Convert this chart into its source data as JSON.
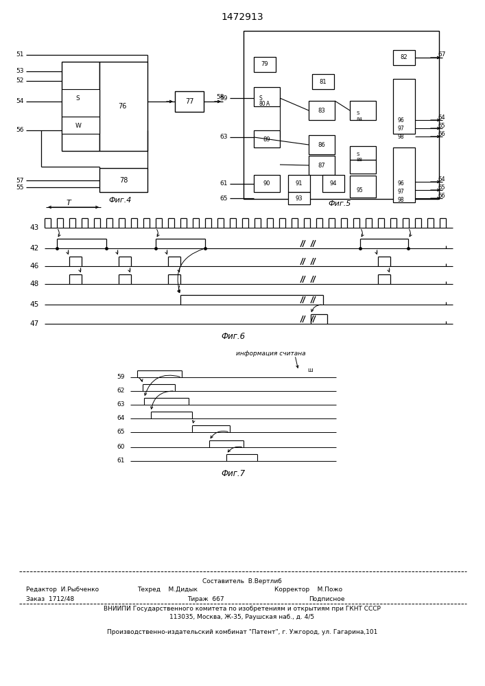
{
  "title": "1472913",
  "bg": "#f5f5f0",
  "lc": "#111111",
  "tc": "#111111",
  "fig4_label": "Фиг.4",
  "fig5_label": "Фиг.5",
  "fig6_label": "Фиг.6",
  "fig7_label": "Фиг.7",
  "info_text": "информация считана",
  "footer": [
    [
      "center",
      353,
      152,
      "Составитель  В.Вертлиб"
    ],
    [
      "left",
      38,
      140,
      "Редактор  И.Рыбченко"
    ],
    [
      "left",
      200,
      140,
      "Техред    М.Дидык"
    ],
    [
      "left",
      400,
      140,
      "Корректор    М.Пожо"
    ],
    [
      "left",
      38,
      127,
      "Заказ  1712/48"
    ],
    [
      "center",
      300,
      127,
      "Тираж  667"
    ],
    [
      "left",
      450,
      127,
      "Подписное"
    ],
    [
      "center",
      353,
      112,
      "ВНИИПИ Государственного комитета по изобретениям и открытиям при ГКНТ СССР"
    ],
    [
      "center",
      353,
      100,
      "113035, Москва, Ж-35, Раушская наб., д. 4/5"
    ],
    [
      "center",
      353,
      78,
      "Производственно-издательский комбинат \"Патент\", г. Ужгород, ул. Гагарина,101"
    ]
  ]
}
